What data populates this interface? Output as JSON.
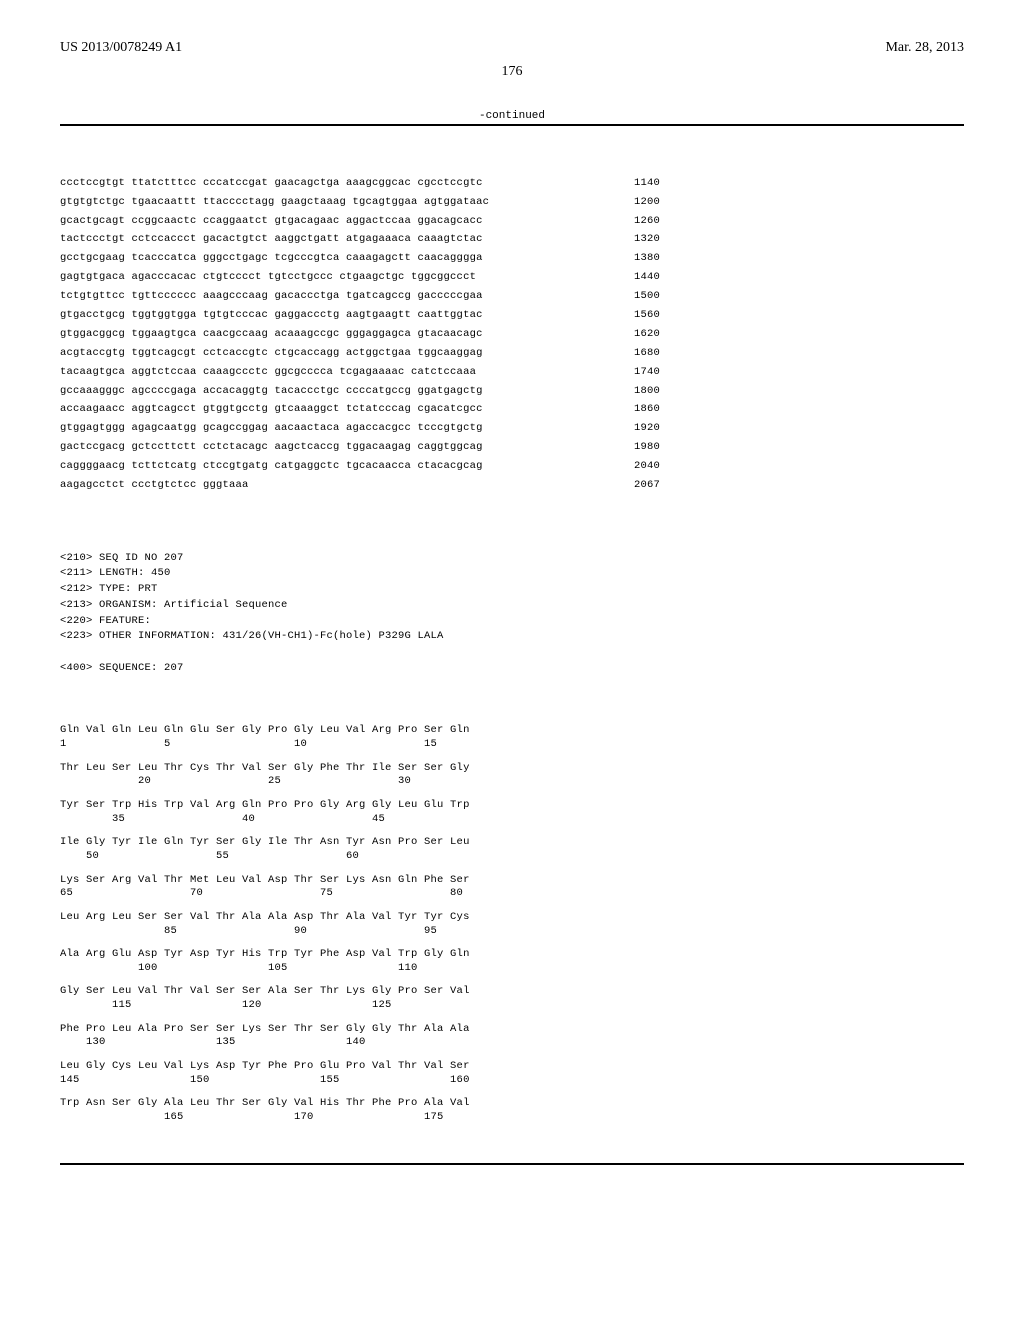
{
  "header": {
    "publication_number": "US 2013/0078249 A1",
    "date": "Mar. 28, 2013"
  },
  "page_number": "176",
  "continued_label": "-continued",
  "nucleotide_sequence": {
    "lines": [
      {
        "seq": "ccctccgtgt ttatctttcc cccatccgat gaacagctga aaagcggcac cgcctccgtc",
        "pos": "1140"
      },
      {
        "seq": "gtgtgtctgc tgaacaattt ttacccctagg gaagctaaag tgcagtggaa agtggataac",
        "pos": "1200"
      },
      {
        "seq": "gcactgcagt ccggcaactc ccaggaatct gtgacagaac aggactccaa ggacagcacc",
        "pos": "1260"
      },
      {
        "seq": "tactccctgt cctccaccct gacactgtct aaggctgatt atgagaaaca caaagtctac",
        "pos": "1320"
      },
      {
        "seq": "gcctgcgaag tcacccatca gggcctgagc tcgcccgtca caaagagctt caacagggga",
        "pos": "1380"
      },
      {
        "seq": "gagtgtgaca agacccacac ctgtcccct tgtcctgccc ctgaagctgc tggcggccct",
        "pos": "1440"
      },
      {
        "seq": "tctgtgttcc tgttcccccc aaagcccaag gacaccctga tgatcagccg gacccccgaa",
        "pos": "1500"
      },
      {
        "seq": "gtgacctgcg tggtggtgga tgtgtcccac gaggaccctg aagtgaagtt caattggtac",
        "pos": "1560"
      },
      {
        "seq": "gtggacggcg tggaagtgca caacgccaag acaaagccgc gggaggagca gtacaacagc",
        "pos": "1620"
      },
      {
        "seq": "acgtaccgtg tggtcagcgt cctcaccgtc ctgcaccagg actggctgaa tggcaaggag",
        "pos": "1680"
      },
      {
        "seq": "tacaagtgca aggtctccaa caaagccctc ggcgcccca tcgagaaaac catctccaaa",
        "pos": "1740"
      },
      {
        "seq": "gccaaagggc agccccgaga accacaggtg tacaccctgc ccccatgccg ggatgagctg",
        "pos": "1800"
      },
      {
        "seq": "accaagaacc aggtcagcct gtggtgcctg gtcaaaggct tctatcccag cgacatcgcc",
        "pos": "1860"
      },
      {
        "seq": "gtggagtggg agagcaatgg gcagccggag aacaactaca agaccacgcc tcccgtgctg",
        "pos": "1920"
      },
      {
        "seq": "gactccgacg gctccttctt cctctacagc aagctcaccg tggacaagag caggtggcag",
        "pos": "1980"
      },
      {
        "seq": "caggggaacg tcttctcatg ctccgtgatg catgaggctc tgcacaacca ctacacgcag",
        "pos": "2040"
      },
      {
        "seq": "aagagcctct ccctgtctcc gggtaaa",
        "pos": "2067"
      }
    ]
  },
  "seq_header": {
    "lines": [
      "<210> SEQ ID NO 207",
      "<211> LENGTH: 450",
      "<212> TYPE: PRT",
      "<213> ORGANISM: Artificial Sequence",
      "<220> FEATURE:",
      "<223> OTHER INFORMATION: 431/26(VH-CH1)-Fc(hole) P329G LALA",
      "",
      "<400> SEQUENCE: 207"
    ]
  },
  "protein_sequence": {
    "rows": [
      {
        "aa": "Gln Val Gln Leu Gln Glu Ser Gly Pro Gly Leu Val Arg Pro Ser Gln",
        "nums": "1               5                   10                  15"
      },
      {
        "aa": "Thr Leu Ser Leu Thr Cys Thr Val Ser Gly Phe Thr Ile Ser Ser Gly",
        "nums": "            20                  25                  30"
      },
      {
        "aa": "Tyr Ser Trp His Trp Val Arg Gln Pro Pro Gly Arg Gly Leu Glu Trp",
        "nums": "        35                  40                  45"
      },
      {
        "aa": "Ile Gly Tyr Ile Gln Tyr Ser Gly Ile Thr Asn Tyr Asn Pro Ser Leu",
        "nums": "    50                  55                  60"
      },
      {
        "aa": "Lys Ser Arg Val Thr Met Leu Val Asp Thr Ser Lys Asn Gln Phe Ser",
        "nums": "65                  70                  75                  80"
      },
      {
        "aa": "Leu Arg Leu Ser Ser Val Thr Ala Ala Asp Thr Ala Val Tyr Tyr Cys",
        "nums": "                85                  90                  95"
      },
      {
        "aa": "Ala Arg Glu Asp Tyr Asp Tyr His Trp Tyr Phe Asp Val Trp Gly Gln",
        "nums": "            100                 105                 110"
      },
      {
        "aa": "Gly Ser Leu Val Thr Val Ser Ser Ala Ser Thr Lys Gly Pro Ser Val",
        "nums": "        115                 120                 125"
      },
      {
        "aa": "Phe Pro Leu Ala Pro Ser Ser Lys Ser Thr Ser Gly Gly Thr Ala Ala",
        "nums": "    130                 135                 140"
      },
      {
        "aa": "Leu Gly Cys Leu Val Lys Asp Tyr Phe Pro Glu Pro Val Thr Val Ser",
        "nums": "145                 150                 155                 160"
      },
      {
        "aa": "Trp Asn Ser Gly Ala Leu Thr Ser Gly Val His Thr Phe Pro Ala Val",
        "nums": "                165                 170                 175"
      }
    ]
  }
}
